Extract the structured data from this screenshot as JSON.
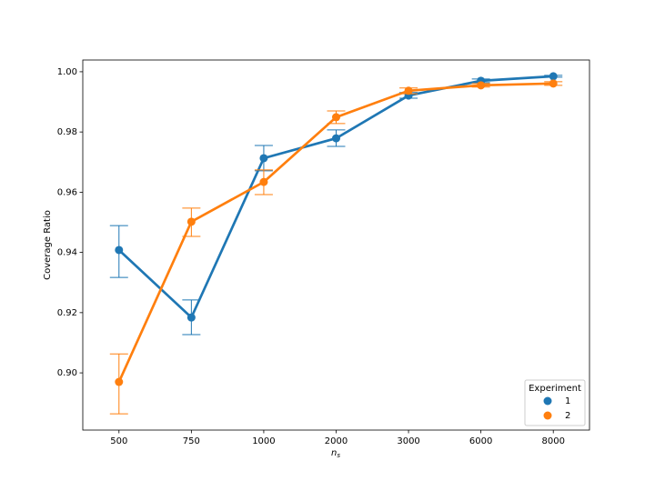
{
  "chart_data": {
    "type": "pointplot",
    "ylabel": "Coverage Ratio",
    "xlabel": "n",
    "xlabel_sub": "s",
    "categories": [
      "500",
      "750",
      "1000",
      "2000",
      "3000",
      "6000",
      "8000"
    ],
    "ylim": [
      0.881,
      1.0039
    ],
    "yticks": [
      {
        "value": 0.9,
        "label": "0.90"
      },
      {
        "value": 0.92,
        "label": "0.92"
      },
      {
        "value": 0.94,
        "label": "0.94"
      },
      {
        "value": 0.96,
        "label": "0.96"
      },
      {
        "value": 0.98,
        "label": "0.98"
      },
      {
        "value": 1.0,
        "label": "1.00"
      }
    ],
    "legend_title": "Experiment",
    "legend_position": "lower right",
    "series": [
      {
        "name": "1",
        "color": "#1f77b4",
        "values": [
          0.9408,
          0.9184,
          0.9713,
          0.9779,
          0.9921,
          0.997,
          0.9985
        ],
        "ci_low": [
          0.9317,
          0.9127,
          0.9671,
          0.9752,
          0.9912,
          0.9964,
          0.9982
        ],
        "ci_high": [
          0.9489,
          0.9242,
          0.9755,
          0.9807,
          0.9931,
          0.9976,
          0.9988
        ]
      },
      {
        "name": "2",
        "color": "#ff7f0e",
        "values": [
          0.897,
          0.9502,
          0.9634,
          0.9849,
          0.9937,
          0.9955,
          0.9961
        ],
        "ci_low": [
          0.8864,
          0.9453,
          0.9592,
          0.9828,
          0.9927,
          0.9949,
          0.9955
        ],
        "ci_high": [
          0.9063,
          0.9547,
          0.9674,
          0.987,
          0.9946,
          0.9961,
          0.9967
        ]
      }
    ]
  }
}
